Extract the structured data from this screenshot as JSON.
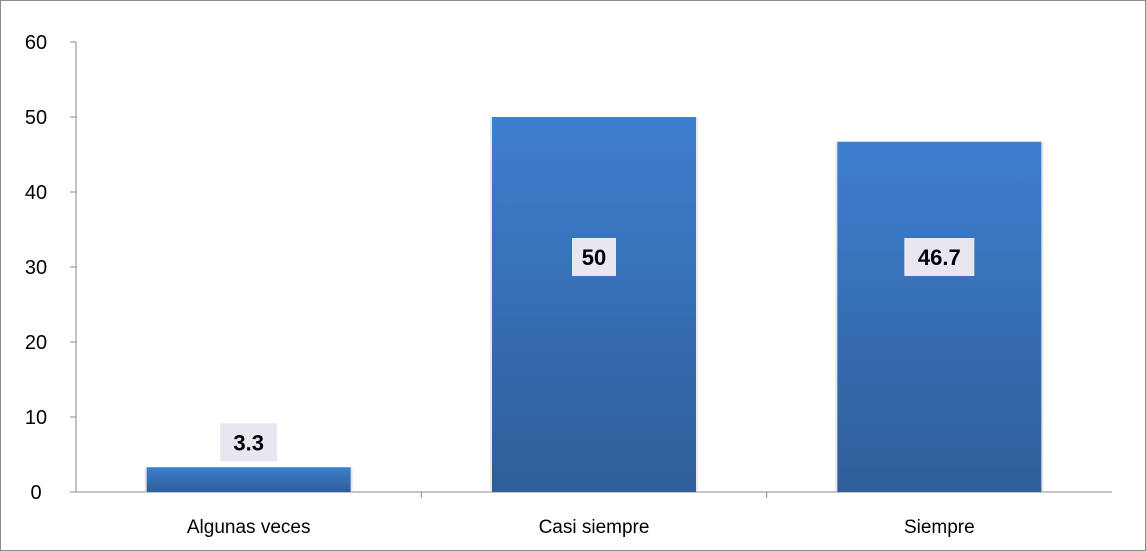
{
  "chart_data": {
    "type": "bar",
    "title": "",
    "xlabel": "",
    "ylabel": "",
    "categories": [
      "Algunas veces",
      "Casi siempre",
      "Siempre"
    ],
    "values": [
      3.3,
      50,
      46.7
    ],
    "data_labels": [
      "3.3",
      "50",
      "46.7"
    ],
    "ylim": [
      0,
      60
    ],
    "yticks": [
      0,
      10,
      20,
      30,
      40,
      50,
      60
    ],
    "ytick_labels": [
      "0",
      "10",
      "20",
      "30",
      "40",
      "50",
      "60"
    ],
    "grid": false,
    "legend": "none",
    "colors": {
      "bar_top": "#3d7fcf",
      "bar_bottom": "#2f5e99",
      "label_box": "#e8e6f1",
      "axis": "#888888"
    }
  }
}
